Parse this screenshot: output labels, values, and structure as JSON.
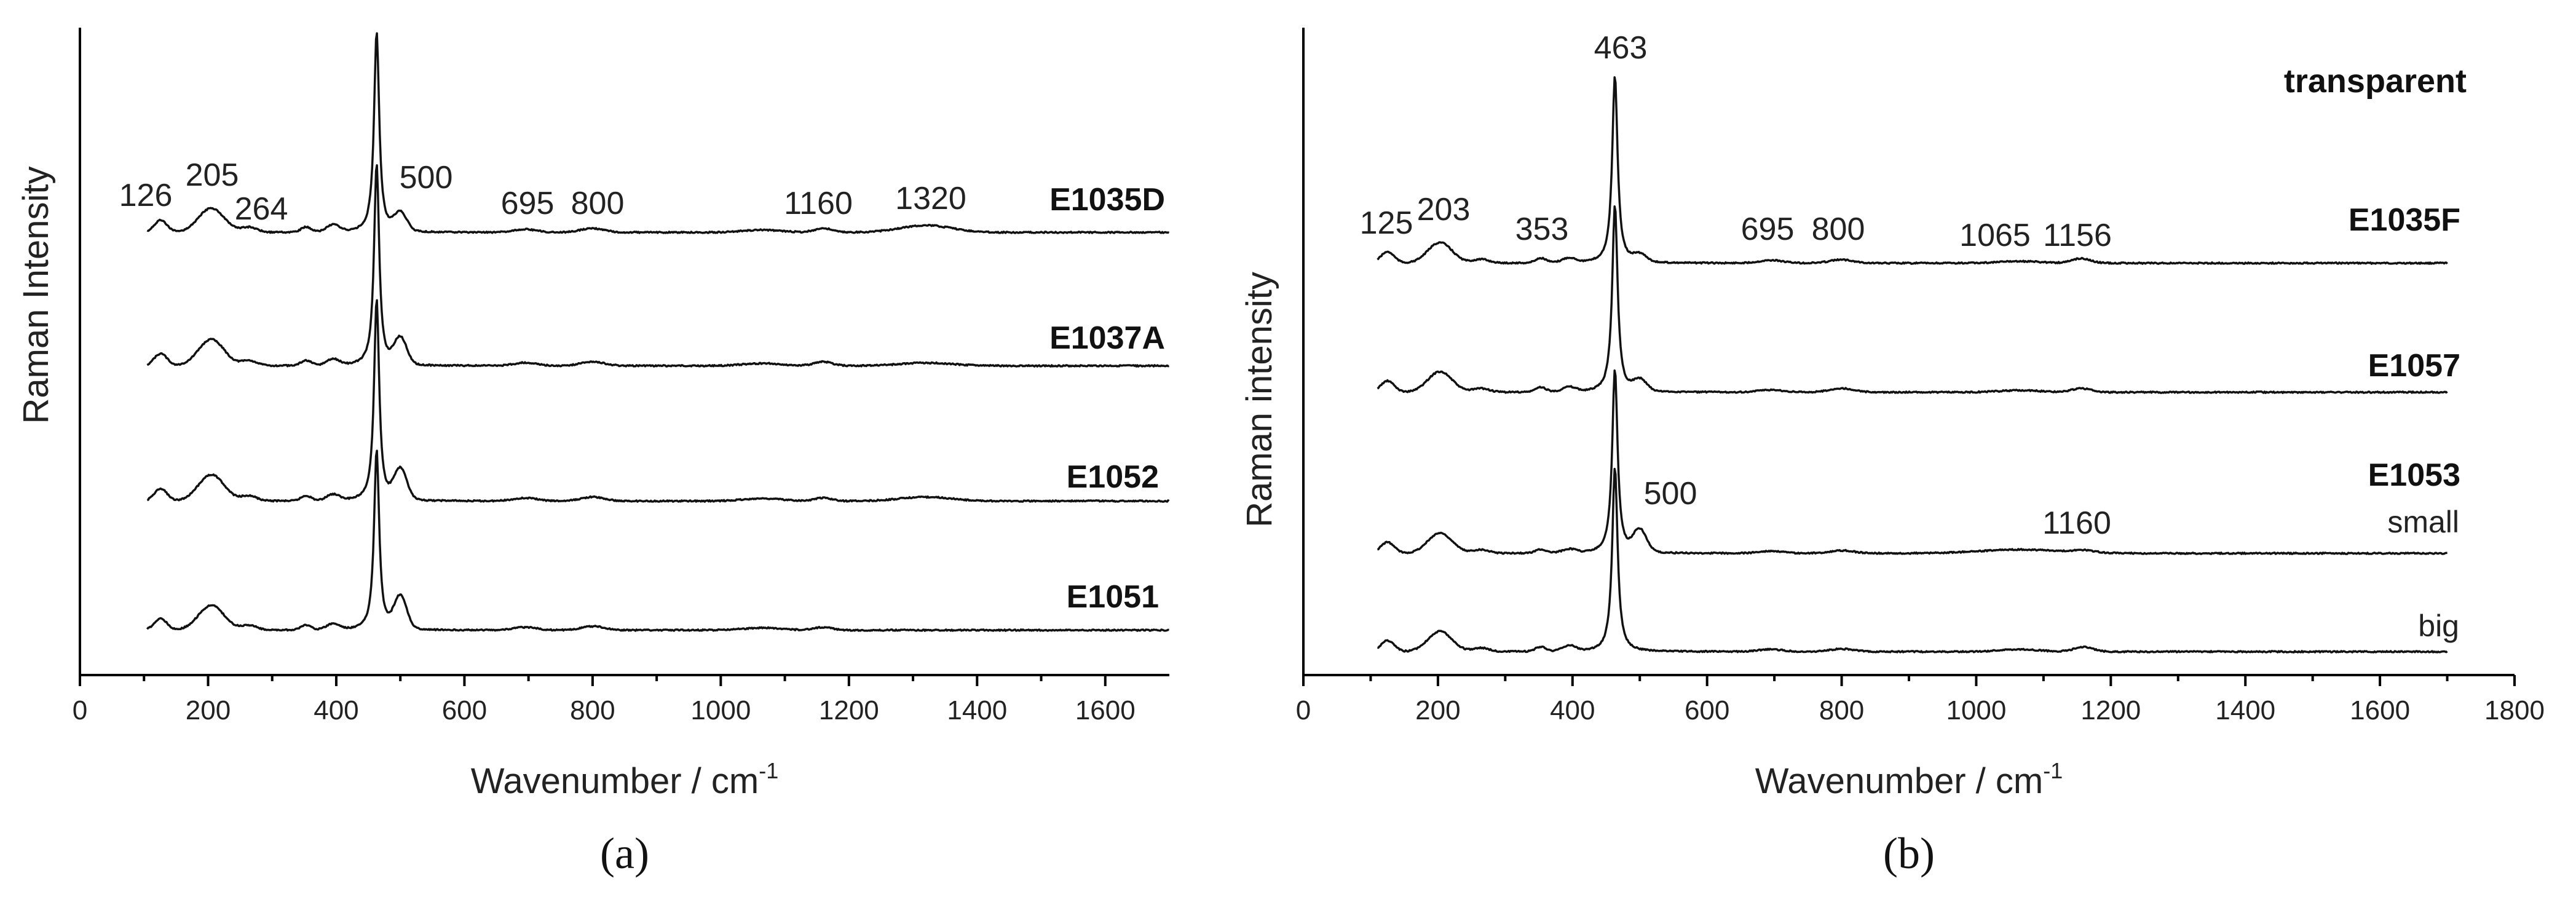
{
  "chart_data": [
    {
      "panel": "(a)",
      "type": "line",
      "xlabel": "Wavenumber / cm",
      "xlabel_sup": "-1",
      "ylabel": "Raman Intensity",
      "xlim": [
        0,
        1700
      ],
      "xticks": [
        0,
        200,
        400,
        600,
        800,
        1000,
        1200,
        1400,
        1600
      ],
      "grid": false,
      "series": [
        {
          "name": "E1035D",
          "x_range": [
            105,
            1700
          ],
          "peaks": [
            {
              "x": 126,
              "h": 0.06,
              "w": 10
            },
            {
              "x": 205,
              "h": 0.12,
              "w": 20
            },
            {
              "x": 264,
              "h": 0.025,
              "w": 12
            },
            {
              "x": 353,
              "h": 0.025,
              "w": 8
            },
            {
              "x": 395,
              "h": 0.035,
              "w": 10
            },
            {
              "x": 463,
              "h": 1.0,
              "w": 8
            },
            {
              "x": 500,
              "h": 0.09,
              "w": 10
            },
            {
              "x": 695,
              "h": 0.015,
              "w": 18
            },
            {
              "x": 800,
              "h": 0.02,
              "w": 18
            },
            {
              "x": 1065,
              "h": 0.012,
              "w": 30
            },
            {
              "x": 1160,
              "h": 0.02,
              "w": 14
            },
            {
              "x": 1320,
              "h": 0.035,
              "w": 40
            }
          ]
        },
        {
          "name": "E1037A",
          "x_range": [
            105,
            1700
          ],
          "peaks": [
            {
              "x": 126,
              "h": 0.06,
              "w": 10
            },
            {
              "x": 205,
              "h": 0.13,
              "w": 20
            },
            {
              "x": 264,
              "h": 0.025,
              "w": 12
            },
            {
              "x": 353,
              "h": 0.025,
              "w": 8
            },
            {
              "x": 395,
              "h": 0.03,
              "w": 10
            },
            {
              "x": 463,
              "h": 1.0,
              "w": 8
            },
            {
              "x": 500,
              "h": 0.13,
              "w": 10
            },
            {
              "x": 695,
              "h": 0.015,
              "w": 18
            },
            {
              "x": 800,
              "h": 0.02,
              "w": 18
            },
            {
              "x": 1065,
              "h": 0.012,
              "w": 30
            },
            {
              "x": 1160,
              "h": 0.02,
              "w": 14
            },
            {
              "x": 1320,
              "h": 0.015,
              "w": 40
            }
          ]
        },
        {
          "name": "E1052",
          "x_range": [
            105,
            1700
          ],
          "peaks": [
            {
              "x": 126,
              "h": 0.06,
              "w": 10
            },
            {
              "x": 205,
              "h": 0.13,
              "w": 20
            },
            {
              "x": 264,
              "h": 0.025,
              "w": 12
            },
            {
              "x": 353,
              "h": 0.025,
              "w": 8
            },
            {
              "x": 395,
              "h": 0.03,
              "w": 10
            },
            {
              "x": 463,
              "h": 1.0,
              "w": 8
            },
            {
              "x": 500,
              "h": 0.15,
              "w": 10
            },
            {
              "x": 695,
              "h": 0.015,
              "w": 18
            },
            {
              "x": 800,
              "h": 0.02,
              "w": 18
            },
            {
              "x": 1065,
              "h": 0.012,
              "w": 30
            },
            {
              "x": 1160,
              "h": 0.015,
              "w": 14
            },
            {
              "x": 1320,
              "h": 0.02,
              "w": 40
            }
          ]
        },
        {
          "name": "E1051",
          "x_range": [
            105,
            1700
          ],
          "peaks": [
            {
              "x": 126,
              "h": 0.06,
              "w": 10
            },
            {
              "x": 205,
              "h": 0.13,
              "w": 20
            },
            {
              "x": 264,
              "h": 0.025,
              "w": 12
            },
            {
              "x": 353,
              "h": 0.025,
              "w": 8
            },
            {
              "x": 395,
              "h": 0.03,
              "w": 10
            },
            {
              "x": 463,
              "h": 0.95,
              "w": 8
            },
            {
              "x": 500,
              "h": 0.17,
              "w": 10
            },
            {
              "x": 695,
              "h": 0.015,
              "w": 18
            },
            {
              "x": 800,
              "h": 0.02,
              "w": 18
            },
            {
              "x": 1065,
              "h": 0.012,
              "w": 30
            },
            {
              "x": 1160,
              "h": 0.015,
              "w": 14
            }
          ]
        }
      ],
      "peak_labels": [
        "126",
        "205",
        "264",
        "500",
        "695",
        "800",
        "1160",
        "1320"
      ]
    },
    {
      "panel": "(b)",
      "type": "line",
      "title": "transparent",
      "xlabel": "Wavenumber / cm",
      "xlabel_sup": "-1",
      "ylabel": "Raman intensity",
      "xlim": [
        0,
        1800
      ],
      "xticks": [
        0,
        200,
        400,
        600,
        800,
        1000,
        1200,
        1400,
        1600,
        1800
      ],
      "grid": false,
      "series": [
        {
          "name": "E1035F",
          "x_range": [
            110,
            1700
          ],
          "peaks": [
            {
              "x": 125,
              "h": 0.06,
              "w": 10
            },
            {
              "x": 203,
              "h": 0.11,
              "w": 18
            },
            {
              "x": 264,
              "h": 0.02,
              "w": 12
            },
            {
              "x": 353,
              "h": 0.025,
              "w": 8
            },
            {
              "x": 395,
              "h": 0.025,
              "w": 10
            },
            {
              "x": 463,
              "h": 1.0,
              "w": 8
            },
            {
              "x": 500,
              "h": 0.04,
              "w": 10
            },
            {
              "x": 695,
              "h": 0.015,
              "w": 18
            },
            {
              "x": 800,
              "h": 0.018,
              "w": 18
            },
            {
              "x": 1065,
              "h": 0.01,
              "w": 30
            },
            {
              "x": 1156,
              "h": 0.025,
              "w": 14
            }
          ]
        },
        {
          "name": "E1057",
          "x_range": [
            110,
            1700
          ],
          "peaks": [
            {
              "x": 125,
              "h": 0.06,
              "w": 10
            },
            {
              "x": 203,
              "h": 0.11,
              "w": 18
            },
            {
              "x": 264,
              "h": 0.02,
              "w": 12
            },
            {
              "x": 353,
              "h": 0.025,
              "w": 8
            },
            {
              "x": 395,
              "h": 0.025,
              "w": 10
            },
            {
              "x": 463,
              "h": 1.0,
              "w": 8
            },
            {
              "x": 500,
              "h": 0.06,
              "w": 10
            },
            {
              "x": 695,
              "h": 0.012,
              "w": 18
            },
            {
              "x": 800,
              "h": 0.02,
              "w": 18
            },
            {
              "x": 1065,
              "h": 0.01,
              "w": 30
            },
            {
              "x": 1156,
              "h": 0.02,
              "w": 14
            }
          ]
        },
        {
          "name": "E1053 small",
          "x_range": [
            110,
            1700
          ],
          "peaks": [
            {
              "x": 125,
              "h": 0.06,
              "w": 10
            },
            {
              "x": 203,
              "h": 0.11,
              "w": 18
            },
            {
              "x": 264,
              "h": 0.02,
              "w": 12
            },
            {
              "x": 353,
              "h": 0.02,
              "w": 8
            },
            {
              "x": 395,
              "h": 0.02,
              "w": 10
            },
            {
              "x": 463,
              "h": 1.0,
              "w": 8
            },
            {
              "x": 500,
              "h": 0.12,
              "w": 10
            },
            {
              "x": 695,
              "h": 0.012,
              "w": 18
            },
            {
              "x": 800,
              "h": 0.015,
              "w": 18
            },
            {
              "x": 1065,
              "h": 0.02,
              "w": 60
            },
            {
              "x": 1160,
              "h": 0.012,
              "w": 16
            }
          ]
        },
        {
          "name": "E1053 big",
          "x_range": [
            110,
            1700
          ],
          "peaks": [
            {
              "x": 125,
              "h": 0.06,
              "w": 10
            },
            {
              "x": 203,
              "h": 0.11,
              "w": 18
            },
            {
              "x": 264,
              "h": 0.02,
              "w": 12
            },
            {
              "x": 353,
              "h": 0.025,
              "w": 8
            },
            {
              "x": 395,
              "h": 0.03,
              "w": 10
            },
            {
              "x": 463,
              "h": 1.0,
              "w": 8
            },
            {
              "x": 695,
              "h": 0.012,
              "w": 18
            },
            {
              "x": 800,
              "h": 0.015,
              "w": 18
            },
            {
              "x": 1065,
              "h": 0.012,
              "w": 30
            },
            {
              "x": 1160,
              "h": 0.025,
              "w": 14
            }
          ]
        }
      ],
      "series_labels": [
        "E1035F",
        "E1057",
        "E1053",
        "small",
        "big"
      ],
      "peak_labels": [
        "125",
        "203",
        "353",
        "463",
        "695",
        "800",
        "1065",
        "1156",
        "500",
        "1160"
      ]
    }
  ]
}
